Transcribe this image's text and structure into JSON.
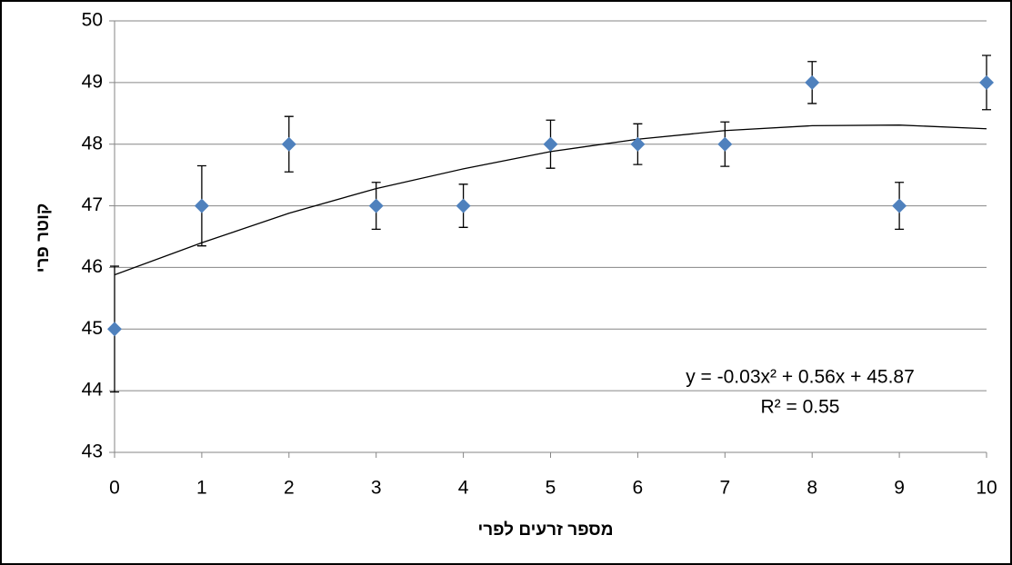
{
  "chart_data": {
    "type": "scatter",
    "x_label": "מספר זרעים לפרי",
    "y_label": "קוטר פרי",
    "x": [
      0,
      1,
      2,
      3,
      4,
      5,
      6,
      7,
      8,
      9,
      10
    ],
    "values": [
      45,
      47,
      48,
      47,
      47,
      48,
      48,
      48,
      49,
      47,
      49
    ],
    "errors": [
      1.02,
      0.65,
      0.45,
      0.38,
      0.35,
      0.39,
      0.33,
      0.36,
      0.34,
      0.38,
      0.44
    ],
    "color": "#4f81bd",
    "trendline": {
      "values": [
        45.88,
        46.4,
        46.88,
        47.28,
        47.6,
        47.88,
        48.08,
        48.22,
        48.3,
        48.31,
        48.25
      ],
      "color": "#000000"
    },
    "trendline_equation": "y = -0.03x² + 0.56x + 45.87",
    "trendline_r2": "R² = 0.55",
    "xlim": [
      0,
      10
    ],
    "xticks": [
      0,
      1,
      2,
      3,
      4,
      5,
      6,
      7,
      8,
      9,
      10
    ],
    "ylim": [
      43,
      50
    ],
    "yticks": [
      43,
      44,
      45,
      46,
      47,
      48,
      49,
      50
    ],
    "grid": true
  }
}
